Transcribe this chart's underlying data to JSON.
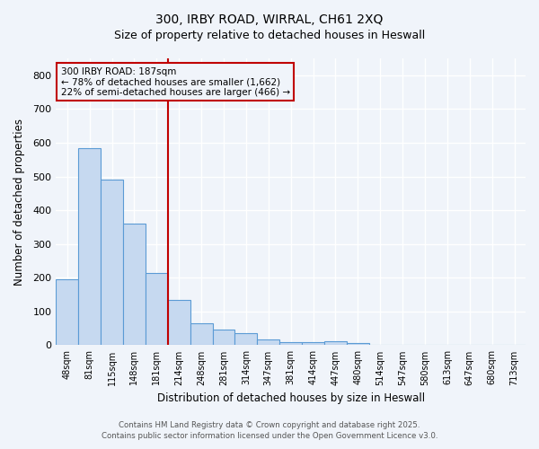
{
  "title_line1": "300, IRBY ROAD, WIRRAL, CH61 2XQ",
  "title_line2": "Size of property relative to detached houses in Heswall",
  "xlabel": "Distribution of detached houses by size in Heswall",
  "ylabel": "Number of detached properties",
  "bar_labels": [
    "48sqm",
    "81sqm",
    "115sqm",
    "148sqm",
    "181sqm",
    "214sqm",
    "248sqm",
    "281sqm",
    "314sqm",
    "347sqm",
    "381sqm",
    "414sqm",
    "447sqm",
    "480sqm",
    "514sqm",
    "547sqm",
    "580sqm",
    "613sqm",
    "647sqm",
    "680sqm",
    "713sqm"
  ],
  "bar_values": [
    195,
    585,
    490,
    360,
    215,
    135,
    65,
    47,
    35,
    17,
    10,
    10,
    12,
    6,
    0,
    0,
    0,
    0,
    0,
    0,
    0
  ],
  "bar_color": "#c6d9f0",
  "bar_edgecolor": "#5b9bd5",
  "reference_line_x": 4.5,
  "reference_line_color": "#c00000",
  "annotation_text": "300 IRBY ROAD: 187sqm\n← 78% of detached houses are smaller (1,662)\n22% of semi-detached houses are larger (466) →",
  "annotation_box_color": "#c00000",
  "ylim": [
    0,
    850
  ],
  "yticks": [
    0,
    100,
    200,
    300,
    400,
    500,
    600,
    700,
    800
  ],
  "footer_line1": "Contains HM Land Registry data © Crown copyright and database right 2025.",
  "footer_line2": "Contains public sector information licensed under the Open Government Licence v3.0.",
  "background_color": "#f0f4fa",
  "grid_color": "#ffffff"
}
